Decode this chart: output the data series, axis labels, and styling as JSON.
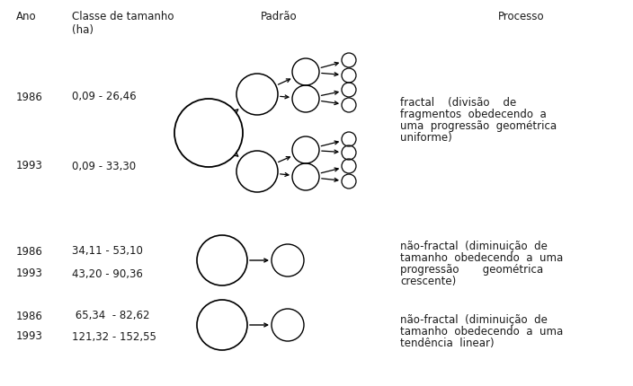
{
  "title_col1": "Ano",
  "title_col2": "Classe de tamanho\n(ha)",
  "title_col3": "Padrão",
  "title_col4": "Processo",
  "r1_ano": "1986",
  "r1_cls": "0,09 - 26,46",
  "r2_ano": "1993",
  "r2_cls": "0,09 - 33,30",
  "r3_ano": "1986",
  "r3_cls": "34,11 - 53,10",
  "r4_ano": "1993",
  "r4_cls": "43,20 - 90,36",
  "r5_ano": "1986",
  "r5_cls": " 65,34  - 82,62",
  "r6_ano": "1993",
  "r6_cls": "121,32 - 152,55",
  "processo1_line1": "fractal    (divisão    de",
  "processo1_line2": "fragmentos  obedecendo  a",
  "processo1_line3": "uma  progressão  geométrica",
  "processo1_line4": "uniforme)",
  "processo2_line1": "não-fractal  (diminuição  de",
  "processo2_line2": "tamanho  obedecendo  a  uma",
  "processo2_line3": "progressão       geométrica",
  "processo2_line4": "crescente)",
  "processo3_line1": "não-fractal  (diminuição  de",
  "processo3_line2": "tamanho  obedecendo  a  uma",
  "processo3_line3": "tendência  linear)",
  "bg_color": "#ffffff",
  "text_color": "#1a1a1a",
  "font_size": 8.5,
  "font_family": "DejaVu Sans"
}
